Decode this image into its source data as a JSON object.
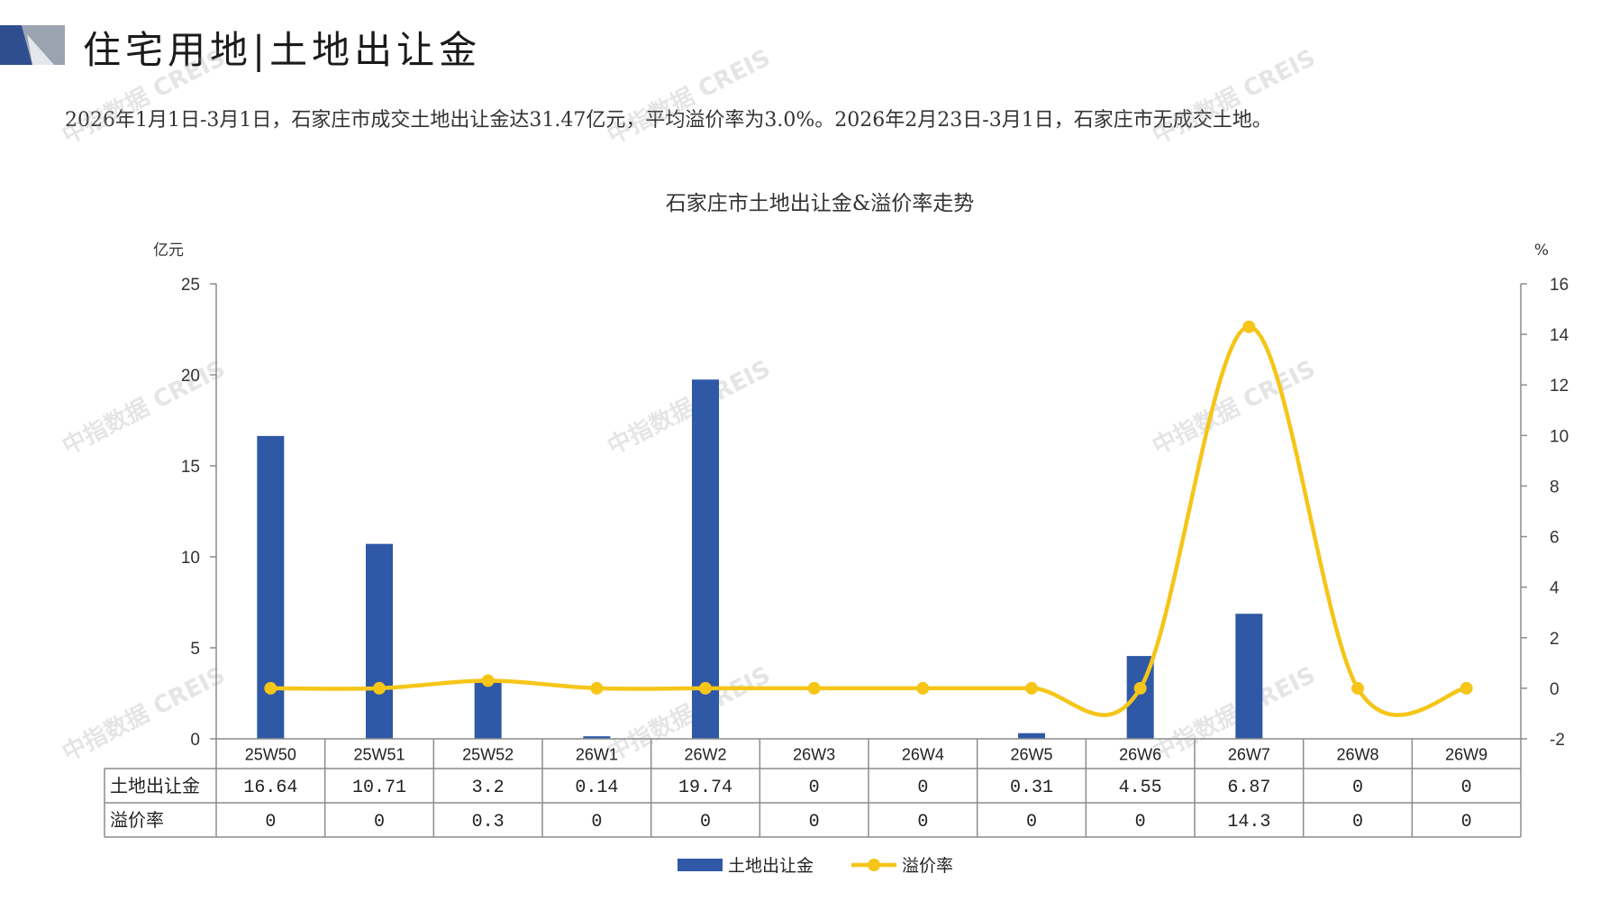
{
  "page": {
    "title": "住宅用地|土地出让金",
    "summary": "2026年1月1日-3月1日，石家庄市成交土地出让金达31.47亿元，平均溢价率为3.0%。2026年2月23日-3月1日，石家庄市无成交土地。",
    "watermark": "中指数据 CREIS"
  },
  "colors": {
    "bar": "#2F58A6",
    "line": "#F5C518",
    "logo_dark": "#2E4E8F",
    "logo_gray": "#9BA3B0",
    "table_border": "#8C8C8C",
    "axis": "#8C8C8C"
  },
  "chart_data": {
    "type": "bar",
    "title": "石家庄市土地出让金&溢价率走势",
    "y_left_unit": "亿元",
    "y_right_unit": "%",
    "categories": [
      "25W50",
      "25W51",
      "25W52",
      "26W1",
      "26W2",
      "26W3",
      "26W4",
      "26W5",
      "26W6",
      "26W7",
      "26W8",
      "26W9"
    ],
    "series": [
      {
        "name": "土地出让金",
        "type": "bar",
        "axis": "left",
        "values": [
          16.64,
          10.71,
          3.2,
          0.14,
          19.74,
          0,
          0,
          0.31,
          4.55,
          6.87,
          0,
          0
        ]
      },
      {
        "name": "溢价率",
        "type": "line",
        "smooth": true,
        "axis": "right",
        "values": [
          0,
          0,
          0.3,
          0,
          0,
          0,
          0,
          0,
          0,
          14.3,
          0,
          0
        ]
      }
    ],
    "table_rows": [
      {
        "label": "土地出让金",
        "cells": [
          "16.64",
          "10.71",
          "3.2",
          "0.14",
          "19.74",
          "0",
          "0",
          "0.31",
          "4.55",
          "6.87",
          "0",
          "0"
        ]
      },
      {
        "label": "溢价率",
        "cells": [
          "0",
          "0",
          "0.3",
          "0",
          "0",
          "0",
          "0",
          "0",
          "0",
          "14.3",
          "0",
          "0"
        ]
      }
    ],
    "y_left": {
      "min": 0,
      "max": 25,
      "ticks": [
        "0",
        "5",
        "10",
        "15",
        "20",
        "25"
      ]
    },
    "y_right": {
      "min": -2,
      "max": 16,
      "ticks": [
        "-2",
        "0",
        "2",
        "4",
        "6",
        "8",
        "10",
        "12",
        "14",
        "16"
      ]
    },
    "legend": {
      "position": "bottom",
      "items": [
        "土地出让金",
        "溢价率"
      ]
    },
    "grid": false
  }
}
